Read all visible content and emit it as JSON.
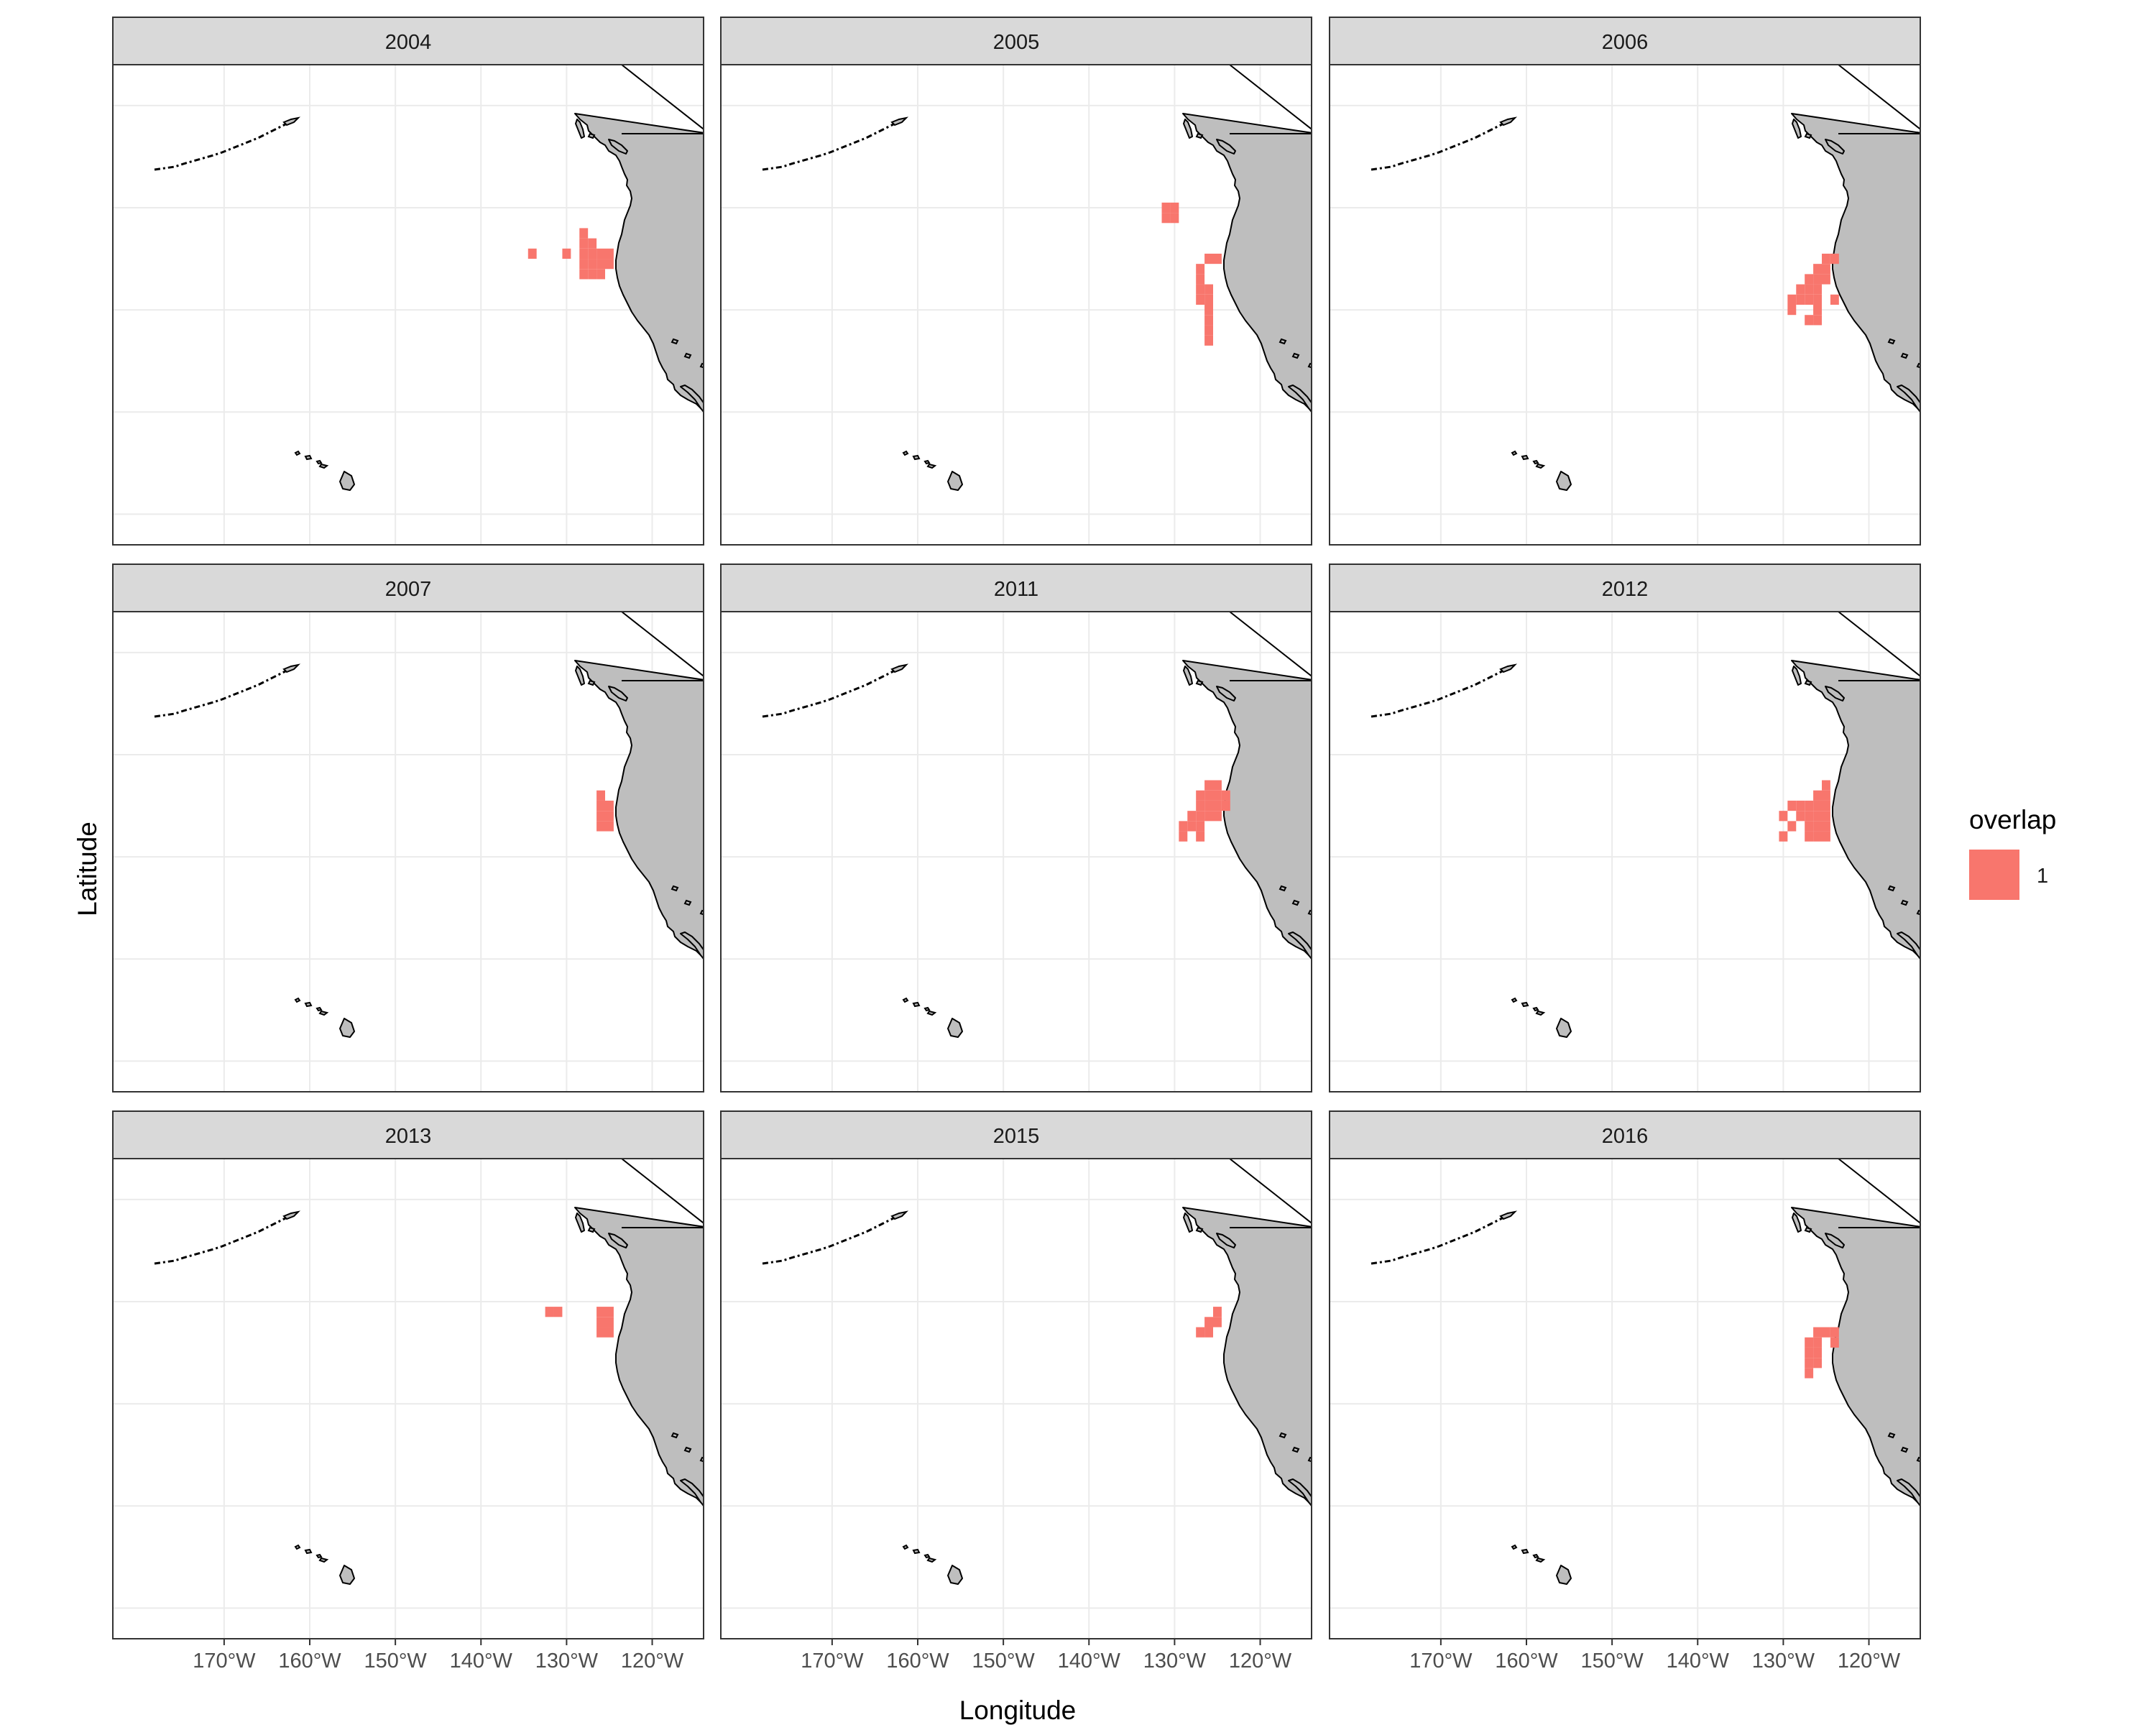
{
  "chart_data": {
    "type": "map-facets",
    "xlabel": "Longitude",
    "ylabel": "Latitude",
    "x_ticks": [
      "170°W",
      "160°W",
      "150°W",
      "140°W",
      "130°W",
      "120°W"
    ],
    "x_tick_values": [
      -170,
      -160,
      -150,
      -140,
      -130,
      -120
    ],
    "y_grid_values": [
      20,
      30,
      40,
      50,
      60
    ],
    "xlim": [
      -183,
      -114
    ],
    "ylim": [
      17,
      64
    ],
    "grid": true,
    "legend": {
      "title": "overlap",
      "entries": [
        {
          "label": "1",
          "color": "#F8766D"
        }
      ],
      "position": "right"
    },
    "colors": {
      "overlap": "#F8766D",
      "land": "#bebebe",
      "strip": "#d9d9d9",
      "grid": "#ebebeb"
    },
    "cell_size_deg": [
      1,
      1
    ],
    "panels": [
      {
        "year": "2004",
        "cells": [
          [
            -134,
            45.5
          ],
          [
            -130,
            45.5
          ],
          [
            -128,
            46.5
          ],
          [
            -128,
            45.5
          ],
          [
            -127,
            45.5
          ],
          [
            -126,
            45.5
          ],
          [
            -125,
            45.5
          ],
          [
            -128,
            44.5
          ],
          [
            -127,
            44.5
          ],
          [
            -126,
            44.5
          ],
          [
            -125,
            44.5
          ],
          [
            -128,
            43.5
          ],
          [
            -127,
            43.5
          ],
          [
            -126,
            43.5
          ],
          [
            -127,
            46.5
          ],
          [
            -128,
            47.5
          ]
        ]
      },
      {
        "year": "2005",
        "cells": [
          [
            -131,
            50
          ],
          [
            -130,
            50
          ],
          [
            -131,
            49
          ],
          [
            -130,
            49
          ],
          [
            -126,
            45
          ],
          [
            -125,
            45
          ],
          [
            -127,
            44
          ],
          [
            -127,
            43
          ],
          [
            -127,
            42
          ],
          [
            -126,
            42
          ],
          [
            -127,
            41
          ],
          [
            -126,
            41
          ],
          [
            -126,
            40
          ],
          [
            -126,
            39
          ],
          [
            -126,
            38
          ],
          [
            -126,
            37
          ]
        ]
      },
      {
        "year": "2006",
        "cells": [
          [
            -125,
            45
          ],
          [
            -124,
            45
          ],
          [
            -126,
            44
          ],
          [
            -125,
            44
          ],
          [
            -127,
            43
          ],
          [
            -126,
            43
          ],
          [
            -125,
            43
          ],
          [
            -128,
            42
          ],
          [
            -127,
            42
          ],
          [
            -126,
            42
          ],
          [
            -129,
            41
          ],
          [
            -128,
            41
          ],
          [
            -127,
            41
          ],
          [
            -126,
            41
          ],
          [
            -124,
            41
          ],
          [
            -129,
            40
          ],
          [
            -126,
            40
          ],
          [
            -126,
            39
          ],
          [
            -127,
            39
          ]
        ]
      },
      {
        "year": "2007",
        "cells": [
          [
            -126,
            46
          ],
          [
            -126,
            45
          ],
          [
            -125,
            45
          ],
          [
            -126,
            44
          ],
          [
            -125,
            44
          ],
          [
            -126,
            43
          ],
          [
            -125,
            43
          ]
        ]
      },
      {
        "year": "2011",
        "cells": [
          [
            -126,
            47
          ],
          [
            -125,
            47
          ],
          [
            -127,
            46
          ],
          [
            -126,
            46
          ],
          [
            -125,
            46
          ],
          [
            -124,
            46
          ],
          [
            -127,
            45
          ],
          [
            -126,
            45
          ],
          [
            -125,
            45
          ],
          [
            -124,
            45
          ],
          [
            -128,
            44
          ],
          [
            -127,
            44
          ],
          [
            -126,
            44
          ],
          [
            -125,
            44
          ],
          [
            -129,
            43
          ],
          [
            -128,
            43
          ],
          [
            -127,
            43
          ],
          [
            -129,
            42
          ],
          [
            -127,
            42
          ]
        ]
      },
      {
        "year": "2012",
        "cells": [
          [
            -125,
            47
          ],
          [
            -125,
            46
          ],
          [
            -126,
            46
          ],
          [
            -127,
            45
          ],
          [
            -126,
            45
          ],
          [
            -125,
            45
          ],
          [
            -129,
            45
          ],
          [
            -128,
            45
          ],
          [
            -130,
            44
          ],
          [
            -128,
            44
          ],
          [
            -127,
            44
          ],
          [
            -126,
            44
          ],
          [
            -125,
            44
          ],
          [
            -129,
            43
          ],
          [
            -127,
            43
          ],
          [
            -126,
            43
          ],
          [
            -125,
            43
          ],
          [
            -130,
            42
          ],
          [
            -127,
            42
          ],
          [
            -126,
            42
          ],
          [
            -125,
            42
          ]
        ]
      },
      {
        "year": "2013",
        "cells": [
          [
            -132,
            49
          ],
          [
            -131,
            49
          ],
          [
            -126,
            49
          ],
          [
            -125,
            49
          ],
          [
            -126,
            48
          ],
          [
            -125,
            48
          ],
          [
            -126,
            47
          ],
          [
            -125,
            47
          ]
        ]
      },
      {
        "year": "2015",
        "cells": [
          [
            -125,
            49
          ],
          [
            -126,
            48
          ],
          [
            -125,
            48
          ],
          [
            -127,
            47
          ],
          [
            -126,
            47
          ]
        ]
      },
      {
        "year": "2016",
        "cells": [
          [
            -126,
            47
          ],
          [
            -125,
            47
          ],
          [
            -124,
            47
          ],
          [
            -127,
            46
          ],
          [
            -126,
            46
          ],
          [
            -124,
            46
          ],
          [
            -127,
            45
          ],
          [
            -126,
            45
          ],
          [
            -127,
            44
          ],
          [
            -126,
            44
          ],
          [
            -127,
            43
          ]
        ]
      }
    ]
  }
}
